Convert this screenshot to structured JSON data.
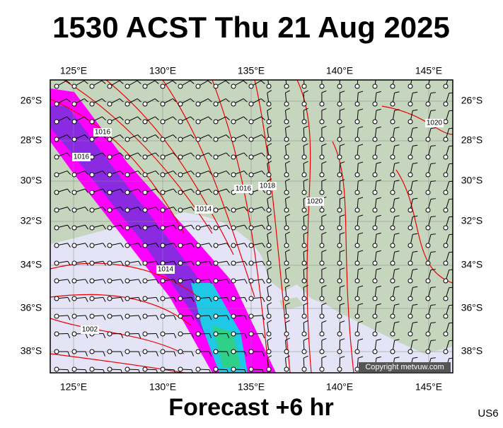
{
  "header": {
    "title": "1530 ACST Thu 21 Aug 2025"
  },
  "map": {
    "lon_labels": [
      "125°E",
      "130°E",
      "135°E",
      "140°E",
      "145°E"
    ],
    "lat_labels": [
      "26°S",
      "28°S",
      "30°S",
      "32°S",
      "34°S",
      "36°S",
      "38°S"
    ],
    "isobar_labels": [
      "1016",
      "1016",
      "1014",
      "1016",
      "1018",
      "1020",
      "1020",
      "1014",
      "1002"
    ],
    "copyright": "Copyright metvuw.com"
  },
  "footer": {
    "forecast": "Forecast +6 hr",
    "code": "US6"
  }
}
